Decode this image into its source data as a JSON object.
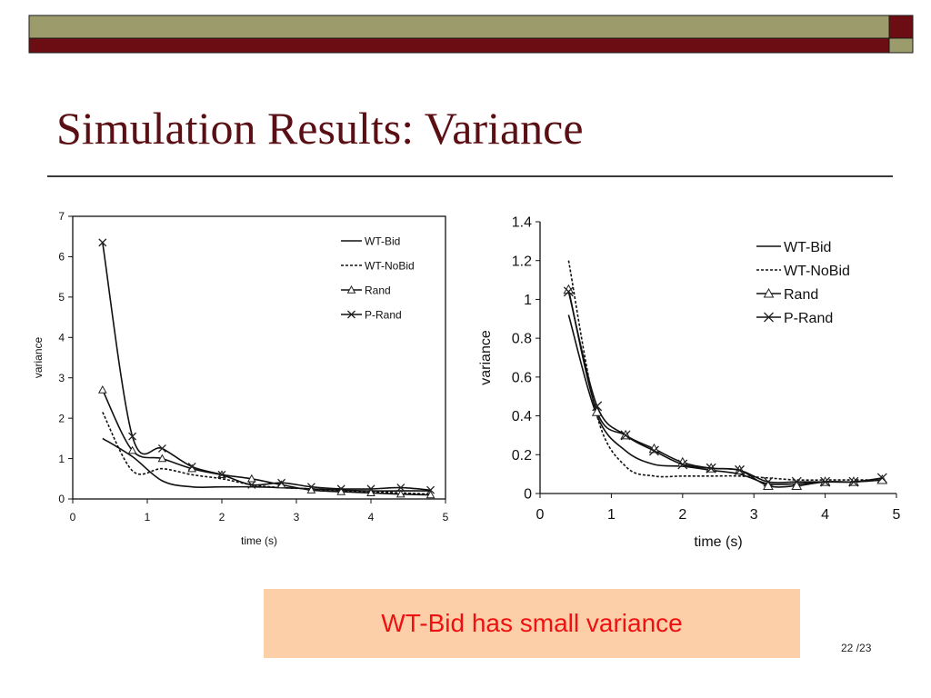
{
  "slide": {
    "title": "Simulation Results: Variance",
    "callout": "WT-Bid has small variance",
    "page_number": "22 /23",
    "colors": {
      "band_olive": "#9c9b6c",
      "band_maroon": "#6b0d12",
      "title": "#5a0f14",
      "callout_bg": "#fccfa8",
      "callout_text": "#ee1111"
    }
  },
  "chart_data": [
    {
      "type": "line",
      "xlabel": "time (s)",
      "ylabel": "variance",
      "xlim": [
        0,
        5
      ],
      "ylim": [
        0,
        7
      ],
      "xticks": [
        "0",
        "1",
        "2",
        "3",
        "4",
        "5"
      ],
      "yticks": [
        "0",
        "1",
        "2",
        "3",
        "4",
        "5",
        "6",
        "7"
      ],
      "legend": "top-right",
      "series": [
        {
          "name": "WT-Bid",
          "style": "solid",
          "marker": "none",
          "x": [
            0.4,
            0.8,
            1.2,
            1.6,
            2.0,
            2.4,
            2.8,
            3.2,
            3.6,
            4.0,
            4.4,
            4.8
          ],
          "y": [
            1.5,
            1.05,
            0.45,
            0.3,
            0.3,
            0.3,
            0.28,
            0.25,
            0.22,
            0.2,
            0.2,
            0.2
          ]
        },
        {
          "name": "WT-NoBid",
          "style": "dashed",
          "marker": "none",
          "x": [
            0.4,
            0.8,
            1.2,
            1.6,
            2.0,
            2.4,
            2.8,
            3.2,
            3.6,
            4.0,
            4.4,
            4.8
          ],
          "y": [
            2.15,
            0.7,
            0.75,
            0.6,
            0.5,
            0.35,
            0.28,
            0.25,
            0.2,
            0.18,
            0.15,
            0.12
          ]
        },
        {
          "name": "Rand",
          "style": "solid",
          "marker": "triangle",
          "x": [
            0.4,
            0.8,
            1.2,
            1.6,
            2.0,
            2.4,
            2.8,
            3.2,
            3.6,
            4.0,
            4.4,
            4.8
          ],
          "y": [
            2.7,
            1.2,
            1.0,
            0.75,
            0.6,
            0.5,
            0.35,
            0.22,
            0.18,
            0.15,
            0.12,
            0.1
          ]
        },
        {
          "name": "P-Rand",
          "style": "solid",
          "marker": "x",
          "x": [
            0.4,
            0.8,
            1.2,
            1.6,
            2.0,
            2.4,
            2.8,
            3.2,
            3.6,
            4.0,
            4.4,
            4.8
          ],
          "y": [
            6.35,
            1.55,
            1.25,
            0.8,
            0.6,
            0.35,
            0.4,
            0.3,
            0.25,
            0.25,
            0.28,
            0.22
          ]
        }
      ]
    },
    {
      "type": "line",
      "xlabel": "time (s)",
      "ylabel": "variance",
      "xlim": [
        0,
        5
      ],
      "ylim": [
        0,
        1.4
      ],
      "xticks": [
        "0",
        "1",
        "2",
        "3",
        "4",
        "5"
      ],
      "yticks": [
        "0",
        "0.2",
        "0.4",
        "0.6",
        "0.8",
        "1",
        "1.2",
        "1.4"
      ],
      "legend": "top-right",
      "series": [
        {
          "name": "WT-Bid",
          "style": "solid",
          "marker": "none",
          "x": [
            0.4,
            0.8,
            1.2,
            1.6,
            2.0,
            2.4,
            2.8,
            3.2,
            3.6,
            4.0,
            4.4,
            4.8
          ],
          "y": [
            0.92,
            0.4,
            0.22,
            0.15,
            0.14,
            0.12,
            0.1,
            0.05,
            0.05,
            0.06,
            0.06,
            0.07
          ]
        },
        {
          "name": "WT-NoBid",
          "style": "dashed",
          "marker": "none",
          "x": [
            0.4,
            0.8,
            1.2,
            1.6,
            2.0,
            2.4,
            2.8,
            3.2,
            3.6,
            4.0,
            4.4,
            4.8
          ],
          "y": [
            1.2,
            0.4,
            0.14,
            0.09,
            0.09,
            0.09,
            0.09,
            0.08,
            0.07,
            0.07,
            0.07,
            0.07
          ]
        },
        {
          "name": "Rand",
          "style": "solid",
          "marker": "triangle",
          "x": [
            0.4,
            0.8,
            1.2,
            1.6,
            2.0,
            2.4,
            2.8,
            3.2,
            3.6,
            4.0,
            4.4,
            4.8
          ],
          "y": [
            1.05,
            0.42,
            0.3,
            0.23,
            0.16,
            0.13,
            0.12,
            0.04,
            0.04,
            0.06,
            0.06,
            0.07
          ]
        },
        {
          "name": "P-Rand",
          "style": "solid",
          "marker": "x",
          "x": [
            0.4,
            0.8,
            1.2,
            1.6,
            2.0,
            2.4,
            2.8,
            3.2,
            3.6,
            4.0,
            4.4,
            4.8
          ],
          "y": [
            1.04,
            0.45,
            0.3,
            0.22,
            0.15,
            0.13,
            0.12,
            0.06,
            0.06,
            0.06,
            0.06,
            0.08
          ]
        }
      ]
    }
  ]
}
